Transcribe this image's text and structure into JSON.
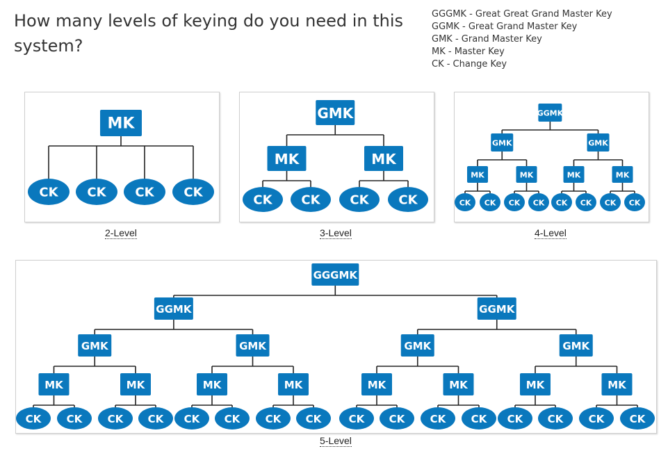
{
  "question": "How many levels of keying do you need in this system?",
  "legend": [
    "GGGMK - Great Great Grand Master Key",
    "GGMK - Great Grand Master Key",
    "GMK - Grand Master Key",
    "MK - Master Key",
    "CK - Change Key"
  ],
  "diagrams": [
    {
      "caption": "2-Level",
      "levels": [
        "MK",
        "CK"
      ],
      "branching": [
        4
      ]
    },
    {
      "caption": "3-Level",
      "levels": [
        "GMK",
        "MK",
        "CK"
      ],
      "branching": [
        2,
        2
      ]
    },
    {
      "caption": "4-Level",
      "levels": [
        "GGMK",
        "GMK",
        "MK",
        "CK"
      ],
      "branching": [
        2,
        2,
        2
      ]
    },
    {
      "caption": "5-Level",
      "levels": [
        "GGGMK",
        "GGMK",
        "GMK",
        "MK",
        "CK"
      ],
      "branching": [
        2,
        2,
        2,
        2
      ]
    }
  ],
  "colors": {
    "node": "#0a78bd",
    "node_text": "#ffffff",
    "line": "#222222"
  }
}
